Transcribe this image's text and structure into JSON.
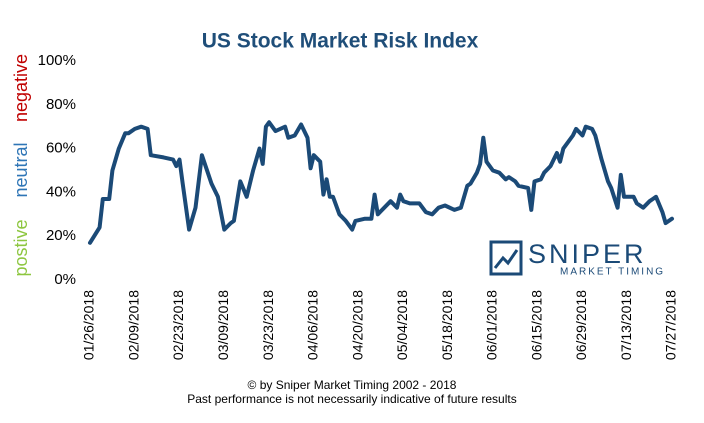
{
  "chart_data": {
    "type": "line",
    "title": "US Stock Market Risk Index",
    "side_labels": [
      {
        "text": "postive",
        "color": "#8dc63f"
      },
      {
        "text": "neutral",
        "color": "#2e75b6"
      },
      {
        "text": "negative",
        "color": "#c00000"
      }
    ],
    "logo": {
      "name": "SNIPER",
      "tagline": "MARKET TIMING"
    },
    "footer": [
      "© by Sniper Market Timing 2002 - 2018",
      "Past performance is not necessarily indicative of future results"
    ],
    "xlim": [
      "01/26/2018",
      "07/27/2018"
    ],
    "xticks": [
      "01/26/2018",
      "02/09/2018",
      "02/23/2018",
      "03/09/2018",
      "03/23/2018",
      "04/06/2018",
      "04/20/2018",
      "05/04/2018",
      "05/18/2018",
      "06/01/2018",
      "06/15/2018",
      "06/29/2018",
      "07/13/2018",
      "07/27/2018"
    ],
    "ylim": [
      0,
      100
    ],
    "yticks": [
      {
        "value": 0,
        "label": "0%"
      },
      {
        "value": 20,
        "label": "20%"
      },
      {
        "value": 40,
        "label": "40%"
      },
      {
        "value": 60,
        "label": "60%"
      },
      {
        "value": 80,
        "label": "80%"
      },
      {
        "value": 100,
        "label": "100%"
      }
    ],
    "grid": false,
    "x": [
      "01/26/2018",
      "01/29/2018",
      "01/30/2018",
      "02/01/2018",
      "02/02/2018",
      "02/04/2018",
      "02/06/2018",
      "02/07/2018",
      "02/09/2018",
      "02/11/2018",
      "02/13/2018",
      "02/14/2018",
      "02/18/2018",
      "02/21/2018",
      "02/22/2018",
      "02/23/2018",
      "02/24/2018",
      "02/26/2018",
      "02/28/2018",
      "03/02/2018",
      "03/05/2018",
      "03/07/2018",
      "03/09/2018",
      "03/11/2018",
      "03/12/2018",
      "03/14/2018",
      "03/16/2018",
      "03/18/2018",
      "03/20/2018",
      "03/21/2018",
      "03/22/2018",
      "03/23/2018",
      "03/25/2018",
      "03/28/2018",
      "03/29/2018",
      "03/31/2018",
      "04/02/2018",
      "04/04/2018",
      "04/05/2018",
      "04/06/2018",
      "04/08/2018",
      "04/09/2018",
      "04/10/2018",
      "04/11/2018",
      "04/12/2018",
      "04/14/2018",
      "04/16/2018",
      "04/18/2018",
      "04/19/2018",
      "04/22/2018",
      "04/24/2018",
      "04/25/2018",
      "04/26/2018",
      "04/30/2018",
      "05/02/2018",
      "05/03/2018",
      "05/04/2018",
      "05/06/2018",
      "05/09/2018",
      "05/11/2018",
      "05/13/2018",
      "05/15/2018",
      "05/17/2018",
      "05/20/2018",
      "05/22/2018",
      "05/24/2018",
      "05/25/2018",
      "05/27/2018",
      "05/28/2018",
      "05/29/2018",
      "05/30/2018",
      "06/01/2018",
      "06/03/2018",
      "06/05/2018",
      "06/06/2018",
      "06/08/2018",
      "06/09/2018",
      "06/12/2018",
      "06/13/2018",
      "06/14/2018",
      "06/16/2018",
      "06/17/2018",
      "06/19/2018",
      "06/21/2018",
      "06/22/2018",
      "06/23/2018",
      "06/26/2018",
      "06/27/2018",
      "06/29/2018",
      "06/30/2018",
      "07/02/2018",
      "07/03/2018",
      "07/05/2018",
      "07/07/2018",
      "07/08/2018",
      "07/10/2018",
      "07/11/2018",
      "07/12/2018",
      "07/15/2018",
      "07/16/2018",
      "07/18/2018",
      "07/20/2018",
      "07/21/2018",
      "07/22/2018",
      "07/24/2018",
      "07/25/2018",
      "07/27/2018"
    ],
    "series": [
      {
        "name": "Risk Index",
        "color": "#1b4a77",
        "values": [
          17,
          24,
          37,
          37,
          50,
          60,
          67,
          67,
          69,
          70,
          69,
          57,
          56,
          55,
          52,
          55,
          44,
          23,
          33,
          57,
          44,
          38,
          23,
          26,
          27,
          45,
          38,
          50,
          60,
          53,
          70,
          72,
          68,
          70,
          65,
          66,
          71,
          65,
          51,
          57,
          54,
          39,
          46,
          38,
          38,
          30,
          27,
          23,
          27,
          28,
          28,
          39,
          30,
          36,
          33,
          39,
          36,
          35,
          35,
          31,
          30,
          33,
          34,
          32,
          33,
          43,
          44,
          49,
          53,
          65,
          54,
          50,
          49,
          46,
          47,
          45,
          43,
          42,
          32,
          45,
          46,
          49,
          52,
          58,
          54,
          60,
          66,
          69,
          66,
          70,
          69,
          66,
          55,
          45,
          42,
          33,
          48,
          38,
          38,
          35,
          33,
          36,
          37,
          38,
          31,
          26,
          28
        ]
      }
    ]
  }
}
